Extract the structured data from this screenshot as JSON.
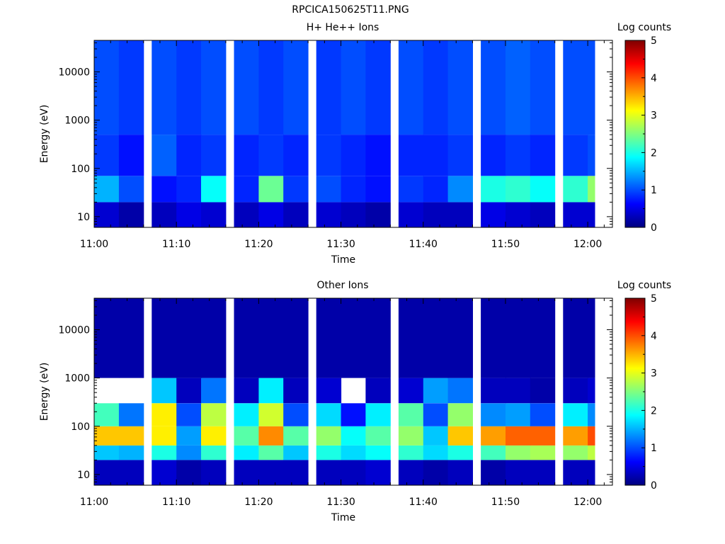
{
  "figure_title": "RPCICA150625T11.PNG",
  "chart_data": [
    {
      "type": "heatmap",
      "title": "H+ He++ Ions",
      "xlabel": "Time",
      "ylabel": "Energy (eV)",
      "colorbar_label": "Log counts",
      "y_scale": "log",
      "ylim": [
        6,
        45000
      ],
      "xlim": [
        "11:00",
        "12:03"
      ],
      "x_ticks": [
        "11:00",
        "11:10",
        "11:20",
        "11:30",
        "11:40",
        "11:50",
        "12:00"
      ],
      "y_ticks": [
        "10",
        "100",
        "1000",
        "10000"
      ],
      "colorbar_ticks": [
        "0",
        "1",
        "2",
        "3",
        "4",
        "5"
      ],
      "colorbar_range": [
        0,
        5
      ],
      "time_columns": [
        "11:00",
        "11:03",
        "11:07",
        "11:10",
        "11:13",
        "11:17",
        "11:20",
        "11:23",
        "11:27",
        "11:30",
        "11:33",
        "11:37",
        "11:40",
        "11:43",
        "11:47",
        "11:50",
        "11:53",
        "11:57",
        "12:00"
      ],
      "energy_bands_eV": [
        {
          "range": [
            6,
            20
          ],
          "log_counts": [
            0.4,
            0.2,
            0.3,
            0.5,
            0.4,
            0.3,
            0.5,
            0.3,
            0.4,
            0.3,
            0.2,
            0.4,
            0.3,
            0.3,
            0.5,
            0.4,
            0.3,
            0.4,
            0.4
          ]
        },
        {
          "range": [
            20,
            70
          ],
          "log_counts": [
            1.5,
            1.0,
            0.7,
            0.8,
            1.9,
            0.8,
            2.4,
            0.9,
            1.0,
            0.8,
            0.7,
            0.9,
            0.8,
            1.3,
            2.0,
            2.1,
            1.9,
            2.1,
            2.6
          ]
        },
        {
          "range": [
            70,
            500
          ],
          "log_counts": [
            0.9,
            0.7,
            1.1,
            0.8,
            0.9,
            0.8,
            0.9,
            0.8,
            0.9,
            0.8,
            0.7,
            0.8,
            0.8,
            0.9,
            0.8,
            0.9,
            0.8,
            0.9,
            1.0
          ]
        },
        {
          "range": [
            500,
            45000
          ],
          "log_counts": [
            1.0,
            0.9,
            1.0,
            0.9,
            1.0,
            1.0,
            0.9,
            1.0,
            0.9,
            1.0,
            0.9,
            1.0,
            0.9,
            1.0,
            1.0,
            1.1,
            1.0,
            1.0,
            1.0
          ]
        }
      ]
    },
    {
      "type": "heatmap",
      "title": "Other Ions",
      "xlabel": "Time",
      "ylabel": "Energy (eV)",
      "colorbar_label": "Log counts",
      "y_scale": "log",
      "ylim": [
        6,
        45000
      ],
      "xlim": [
        "11:00",
        "12:03"
      ],
      "x_ticks": [
        "11:00",
        "11:10",
        "11:20",
        "11:30",
        "11:40",
        "11:50",
        "12:00"
      ],
      "y_ticks": [
        "10",
        "100",
        "1000",
        "10000"
      ],
      "colorbar_ticks": [
        "0",
        "1",
        "2",
        "3",
        "4",
        "5"
      ],
      "colorbar_range": [
        0,
        5
      ],
      "time_columns": [
        "11:00",
        "11:03",
        "11:07",
        "11:10",
        "11:13",
        "11:17",
        "11:20",
        "11:23",
        "11:27",
        "11:30",
        "11:33",
        "11:37",
        "11:40",
        "11:43",
        "11:47",
        "11:50",
        "11:53",
        "11:57",
        "12:00"
      ],
      "energy_bands_eV": [
        {
          "range": [
            6,
            20
          ],
          "log_counts": [
            0.3,
            0.3,
            0.4,
            0.2,
            0.3,
            0.3,
            0.3,
            0.3,
            0.3,
            0.3,
            0.4,
            0.3,
            0.2,
            0.3,
            0.2,
            0.3,
            0.3,
            0.3,
            0.3
          ]
        },
        {
          "range": [
            20,
            40
          ],
          "log_counts": [
            1.6,
            1.5,
            2.0,
            1.3,
            2.1,
            1.8,
            2.3,
            1.6,
            2.0,
            1.7,
            1.9,
            2.1,
            1.7,
            2.0,
            2.2,
            2.6,
            2.7,
            2.6,
            2.8
          ]
        },
        {
          "range": [
            40,
            100
          ],
          "log_counts": [
            3.4,
            3.4,
            3.2,
            1.4,
            3.2,
            2.3,
            3.7,
            2.3,
            2.6,
            1.9,
            2.3,
            2.6,
            1.6,
            3.4,
            3.6,
            3.9,
            3.9,
            3.6,
            4.0
          ]
        },
        {
          "range": [
            100,
            300
          ],
          "log_counts": [
            2.2,
            1.2,
            3.2,
            1.0,
            2.8,
            1.8,
            2.9,
            1.0,
            1.7,
            0.7,
            1.8,
            2.3,
            1.0,
            2.6,
            1.3,
            1.4,
            1.0,
            1.8,
            1.3
          ]
        },
        {
          "range": [
            300,
            1000
          ],
          "log_counts": [
            null,
            null,
            1.6,
            0.3,
            1.2,
            0.3,
            1.8,
            0.3,
            0.4,
            null,
            0.3,
            0.4,
            1.4,
            1.2,
            0.3,
            0.3,
            0.2,
            0.3,
            0.4
          ]
        },
        {
          "range": [
            1000,
            45000
          ],
          "log_counts": [
            0.2,
            0.2,
            0.2,
            0.2,
            0.2,
            0.2,
            0.2,
            0.2,
            0.2,
            0.2,
            0.2,
            0.2,
            0.2,
            0.2,
            0.2,
            0.2,
            0.2,
            0.2,
            0.2
          ]
        }
      ]
    }
  ]
}
